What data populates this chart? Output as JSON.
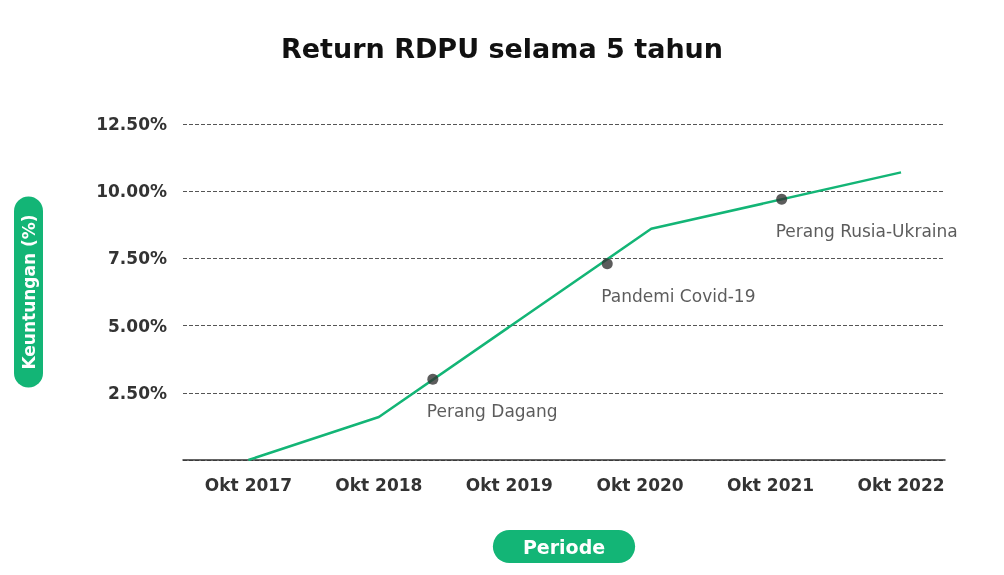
{
  "chart_data": {
    "type": "line",
    "title": "Return RDPU selama 5 tahun",
    "xlabel": "Periode",
    "ylabel": "Keuntungan (%)",
    "series": [
      {
        "marker": "none",
        "color": "#13b576",
        "x": [
          "2017-10",
          "2018-10",
          "2020-11",
          "2022-10"
        ],
        "values": [
          0,
          1.6,
          8.6,
          10.7
        ]
      },
      {
        "type": "scatter",
        "marker": "circle",
        "color": "#333333",
        "x": [
          "2019-03",
          "2020-07",
          "2021-11"
        ],
        "values": [
          3.0,
          7.3,
          9.7
        ]
      }
    ],
    "annotations": [
      {
        "text": "Perang Dagang",
        "x": "2019-03",
        "y": 3.0
      },
      {
        "text": "Pandemi Covid-19",
        "x": "2020-07",
        "y": 7.3
      },
      {
        "text": "Perang Rusia-Ukraina",
        "x": "2021-11",
        "y": 9.7
      }
    ],
    "xlim": [
      "2017-04",
      "2023-02"
    ],
    "xticks": [
      {
        "value": "2017-10",
        "label": "Okt 2017"
      },
      {
        "value": "2018-10",
        "label": "Okt 2018"
      },
      {
        "value": "2019-10",
        "label": "Okt 2019"
      },
      {
        "value": "2020-10",
        "label": "Okt 2020"
      },
      {
        "value": "2021-10",
        "label": "Okt 2021"
      },
      {
        "value": "2022-10",
        "label": "Okt 2022"
      }
    ],
    "ylim": [
      0,
      12.5
    ],
    "yticks": [
      {
        "value": 0,
        "label": null
      },
      {
        "value": 2.5,
        "label": "2.50%"
      },
      {
        "value": 5,
        "label": "5.00%"
      },
      {
        "value": 7.5,
        "label": "7.50%"
      },
      {
        "value": 10,
        "label": "10.00%"
      },
      {
        "value": 12.5,
        "label": "12.50%"
      }
    ],
    "grid": "y",
    "line_style": "solid"
  }
}
